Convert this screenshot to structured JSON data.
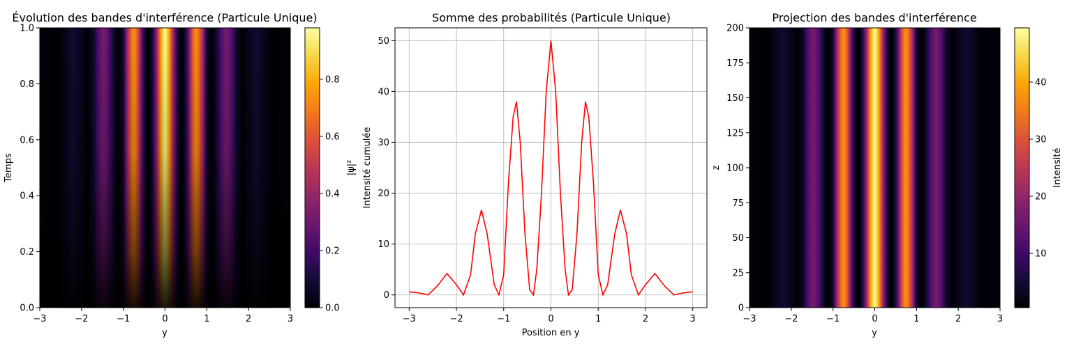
{
  "panels": [
    {
      "title": "Évolution des bandes d'interférence (Particule Unique)",
      "xlabel": "y",
      "ylabel": "Temps",
      "colorbar_label": "|ψ|²"
    },
    {
      "title": "Somme des probabilités (Particule Unique)",
      "xlabel": "Position en y",
      "ylabel": "Intensité cumulée"
    },
    {
      "title": "Projection des bandes d'interférence",
      "xlabel": "y",
      "ylabel": "z",
      "colorbar_label": "Intensité"
    }
  ],
  "chart_data": [
    {
      "type": "heatmap",
      "title": "Évolution des bandes d'interférence (Particule Unique)",
      "xlabel": "y",
      "ylabel": "Temps",
      "colormap": "inferno",
      "xlim": [
        -3,
        3
      ],
      "ylim": [
        0,
        1
      ],
      "xticks": [
        -3,
        -2,
        -1,
        0,
        1,
        2,
        3
      ],
      "yticks": [
        0.0,
        0.2,
        0.4,
        0.6,
        0.8,
        1.0
      ],
      "colorbar": {
        "label": "|ψ|²",
        "range": [
          0,
          0.98
        ],
        "ticks": [
          0.0,
          0.2,
          0.4,
          0.6,
          0.8
        ]
      },
      "note": "fringes grow in intensity with time; peak |ψ|² ≈ 0.98 at y=0, t=1"
    },
    {
      "type": "line",
      "title": "Somme des probabilités (Particule Unique)",
      "xlabel": "Position en y",
      "ylabel": "Intensité cumulée",
      "xlim": [
        -3.3,
        3.3
      ],
      "ylim": [
        -2.5,
        52.5
      ],
      "xticks": [
        -3,
        -2,
        -1,
        0,
        1,
        2,
        3
      ],
      "yticks": [
        0,
        10,
        20,
        30,
        40,
        50
      ],
      "grid": true,
      "color": "#ff0000",
      "series": [
        {
          "x": [
            -3.0,
            -2.8,
            -2.6,
            -2.4,
            -2.2,
            -2.0,
            -1.85,
            -1.7,
            -1.6,
            -1.47,
            -1.35,
            -1.2,
            -1.1,
            -1.0,
            -0.9,
            -0.8,
            -0.73,
            -0.65,
            -0.55,
            -0.45,
            -0.37,
            -0.3,
            -0.2,
            -0.1,
            0.0,
            0.1,
            0.2,
            0.3,
            0.37,
            0.45,
            0.55,
            0.65,
            0.73,
            0.8,
            0.9,
            1.0,
            1.1,
            1.2,
            1.35,
            1.47,
            1.6,
            1.7,
            1.85,
            2.0,
            2.2,
            2.4,
            2.6,
            2.8,
            3.0
          ],
          "y": [
            0.6,
            0.4,
            0.0,
            1.8,
            4.2,
            2.0,
            0.0,
            4.0,
            12.0,
            16.7,
            12.0,
            2.0,
            0.0,
            4.0,
            22.0,
            35.0,
            38.0,
            30.0,
            12.0,
            1.0,
            0.0,
            5.0,
            20.0,
            40.0,
            50.0,
            40.0,
            20.0,
            5.0,
            0.0,
            1.0,
            12.0,
            30.0,
            38.0,
            35.0,
            22.0,
            4.0,
            0.0,
            2.0,
            12.0,
            16.7,
            12.0,
            4.0,
            0.0,
            2.0,
            4.2,
            1.8,
            0.0,
            0.4,
            0.6
          ]
        }
      ]
    },
    {
      "type": "heatmap",
      "title": "Projection des bandes d'interférence",
      "xlabel": "y",
      "ylabel": "z",
      "colormap": "inferno",
      "xlim": [
        -3,
        3
      ],
      "ylim": [
        0,
        200
      ],
      "xticks": [
        -3,
        -2,
        -1,
        0,
        1,
        2,
        3
      ],
      "yticks": [
        0,
        25,
        50,
        75,
        100,
        125,
        150,
        175,
        200
      ],
      "colorbar": {
        "label": "Intensité",
        "range": [
          0.5,
          49.5
        ],
        "ticks": [
          10,
          20,
          30,
          40
        ]
      },
      "note": "uniform along z; intensity profile equals the cumulative sum from the middle panel"
    }
  ]
}
